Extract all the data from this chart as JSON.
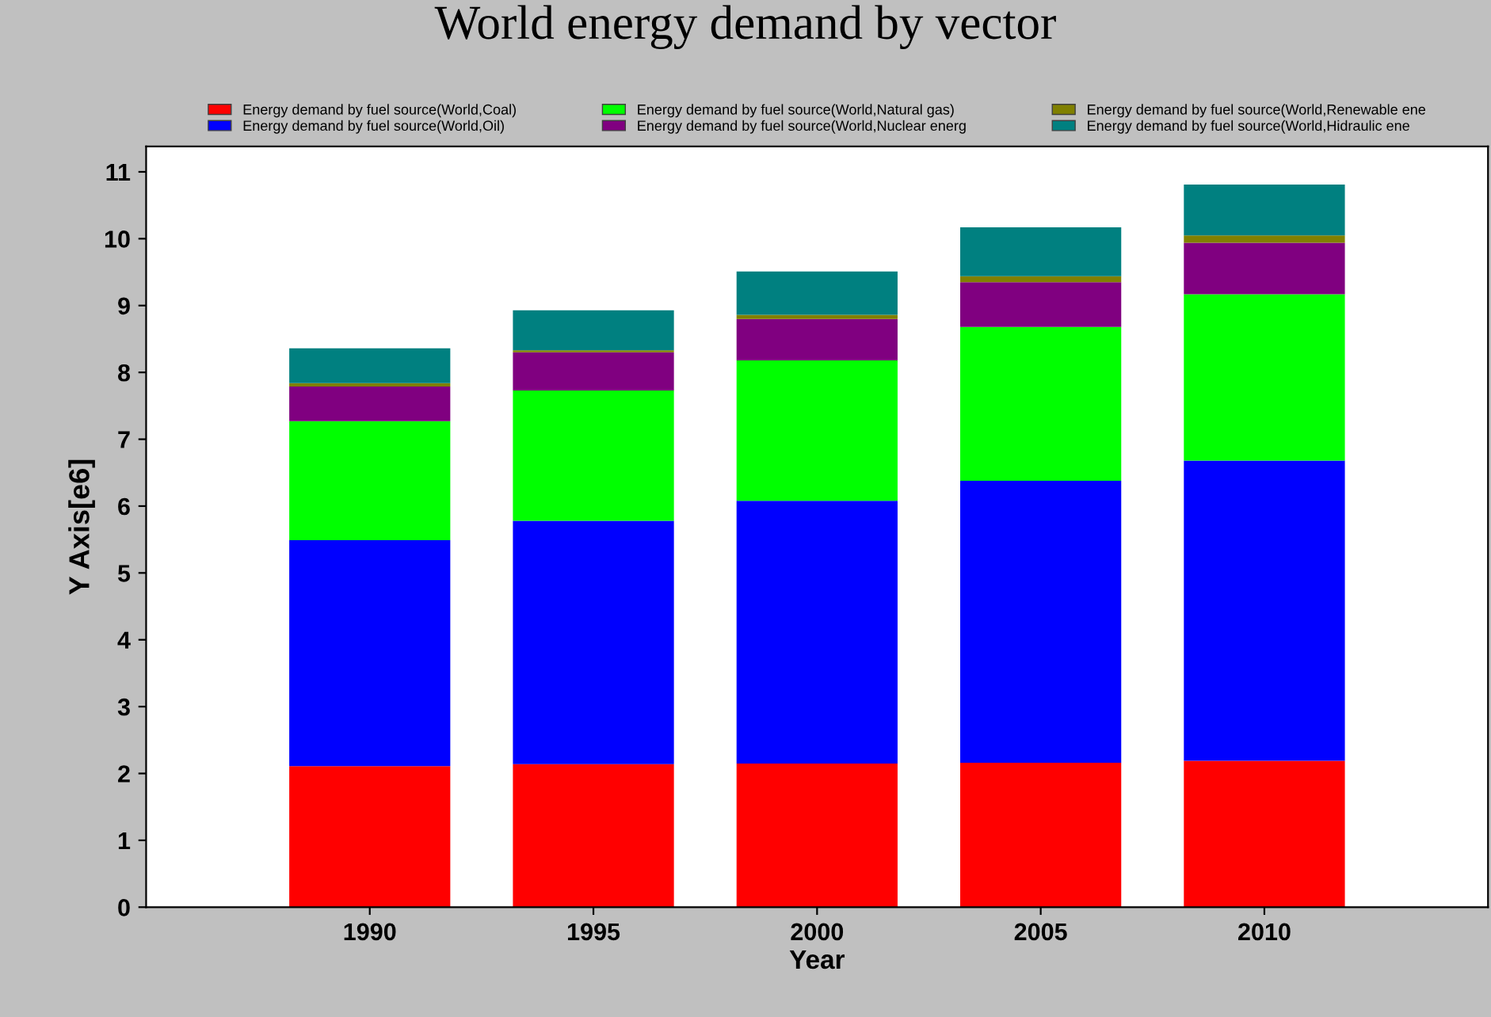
{
  "chart_data": {
    "type": "bar",
    "title": "World energy demand by vector",
    "xlabel": "Year",
    "ylabel": "Y Axis[e6]",
    "categories": [
      "1990",
      "1995",
      "2000",
      "2005",
      "2010"
    ],
    "stacked": true,
    "series": [
      {
        "name": "Energy demand by fuel source(World,Coal)",
        "color": "#ff0000",
        "values": [
          2.11,
          2.14,
          2.15,
          2.16,
          2.19
        ]
      },
      {
        "name": "Energy demand by fuel source(World,Oil)",
        "color": "#0000ff",
        "values": [
          3.38,
          3.64,
          3.93,
          4.22,
          4.49
        ]
      },
      {
        "name": "Energy demand by fuel source(World,Natural gas)",
        "color": "#00ff00",
        "values": [
          1.78,
          1.95,
          2.1,
          2.3,
          2.49
        ]
      },
      {
        "name": "Energy demand by fuel source(World,Nuclear energ",
        "color": "#800080",
        "values": [
          0.52,
          0.57,
          0.62,
          0.67,
          0.77
        ]
      },
      {
        "name": "Energy demand by fuel source(World,Renewable ene",
        "color": "#808000",
        "values": [
          0.05,
          0.03,
          0.06,
          0.09,
          0.11
        ]
      },
      {
        "name": "Energy demand by fuel source(World,Hidraulic ene",
        "color": "#008080",
        "values": [
          0.52,
          0.6,
          0.65,
          0.73,
          0.76
        ]
      }
    ],
    "ylim": [
      0,
      11.38
    ],
    "yticks": [
      0,
      1,
      2,
      3,
      4,
      5,
      6,
      7,
      8,
      9,
      10,
      11
    ],
    "grid": false,
    "legend": "top"
  }
}
